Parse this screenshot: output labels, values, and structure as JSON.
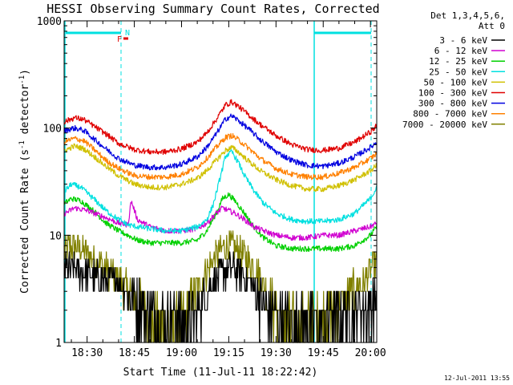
{
  "chart_data": {
    "type": "line",
    "title": "HESSI Observing Summary Count Rates, Corrected",
    "xlabel": "Start Time (11-Jul-11 18:22:42)",
    "ylabel_parts": [
      "Corrected Count Rate (s",
      "-1",
      " detector",
      "-1",
      ")"
    ],
    "yscale": "log",
    "ylim": [
      1,
      1000
    ],
    "xlim": [
      "18:22:42",
      "20:02:00"
    ],
    "x_ticks": [
      "18:30",
      "18:45",
      "19:00",
      "19:15",
      "19:30",
      "19:45",
      "20:00"
    ],
    "x_tick_minutes": [
      510,
      525,
      540,
      555,
      570,
      585,
      600
    ],
    "x_range_minutes": [
      502.7,
      602
    ],
    "y_ticks": [
      {
        "value": 1,
        "label": "1"
      },
      {
        "value": 10,
        "label": "10"
      },
      {
        "value": 100,
        "label": "100"
      },
      {
        "value": 1000,
        "label": "1000"
      }
    ],
    "legend_header": [
      "Det 1,3,4,5,6,",
      "Att 0"
    ],
    "legend_position": "right",
    "annotations": {
      "flag_F": "F",
      "flag_N": "N"
    },
    "series": [
      {
        "name": "3 - 6 keV",
        "color": "#000000",
        "noisy": true,
        "x": [
          503,
          508,
          515,
          520,
          523,
          525,
          530,
          535,
          540,
          544,
          547,
          550,
          553,
          556,
          559,
          562,
          565,
          570,
          575,
          580,
          585,
          590,
          595,
          600,
          602
        ],
        "y": [
          5,
          4.5,
          4,
          3.5,
          3,
          2.5,
          2,
          1.8,
          1.6,
          1.8,
          2.5,
          3.5,
          4.5,
          5,
          4.5,
          3.5,
          2.5,
          1.8,
          1.6,
          1.6,
          1.6,
          1.8,
          2,
          2.2,
          2.5
        ]
      },
      {
        "name": "6 - 12 keV",
        "color": "#d000d0",
        "x": [
          503,
          506,
          510,
          515,
          520,
          523,
          524,
          526,
          530,
          535,
          540,
          545,
          548,
          551,
          553,
          555,
          557,
          560,
          563,
          566,
          570,
          575,
          580,
          585,
          590,
          595,
          600,
          602
        ],
        "y": [
          16,
          18,
          17,
          15,
          13,
          12.5,
          21,
          14,
          12,
          11,
          11,
          11.5,
          13,
          16,
          18,
          17,
          16,
          14,
          12,
          11,
          10,
          9.5,
          9.5,
          10,
          10,
          11,
          12,
          13
        ]
      },
      {
        "name": "12 - 25 keV",
        "color": "#00d000",
        "x": [
          503,
          505,
          508,
          512,
          516,
          520,
          523,
          526,
          530,
          535,
          540,
          545,
          548,
          551,
          553,
          555,
          557,
          560,
          563,
          566,
          570,
          575,
          580,
          585,
          590,
          595,
          600,
          602
        ],
        "y": [
          20,
          22,
          21,
          17,
          13,
          11,
          10,
          9,
          8.5,
          8.5,
          8.5,
          9,
          11,
          16,
          22,
          24,
          21,
          16,
          12,
          9.5,
          8,
          7.5,
          7.5,
          7.5,
          7.5,
          8,
          10,
          12
        ]
      },
      {
        "name": "25 - 50 keV",
        "color": "#00e0e0",
        "x": [
          503,
          505,
          508,
          512,
          516,
          520,
          523,
          526,
          530,
          535,
          540,
          545,
          548,
          550,
          552,
          554,
          556,
          558,
          560,
          563,
          566,
          570,
          575,
          580,
          585,
          590,
          595,
          600,
          602
        ],
        "y": [
          26,
          30,
          28,
          22,
          17,
          14,
          12.5,
          12,
          11.5,
          11,
          11,
          12,
          14,
          19,
          32,
          55,
          60,
          48,
          36,
          26,
          20,
          16,
          14,
          13.5,
          13.5,
          14,
          16,
          22,
          28
        ]
      },
      {
        "name": "50 - 100 keV",
        "color": "#d0c000",
        "x": [
          503,
          506,
          509,
          512,
          516,
          520,
          525,
          530,
          535,
          540,
          545,
          548,
          551,
          554,
          556,
          558,
          561,
          565,
          570,
          575,
          580,
          585,
          590,
          595,
          600,
          602
        ],
        "y": [
          62,
          68,
          64,
          55,
          44,
          36,
          30,
          28,
          28,
          30,
          34,
          40,
          50,
          62,
          66,
          60,
          50,
          40,
          33,
          29,
          27,
          27,
          29,
          33,
          40,
          45
        ]
      },
      {
        "name": "100 - 300 keV",
        "color": "#e00000",
        "x": [
          503,
          506,
          509,
          512,
          516,
          520,
          525,
          530,
          535,
          540,
          545,
          548,
          551,
          554,
          556,
          558,
          561,
          565,
          570,
          575,
          580,
          585,
          590,
          595,
          600,
          602
        ],
        "y": [
          115,
          125,
          120,
          105,
          88,
          72,
          63,
          60,
          60,
          64,
          74,
          90,
          120,
          165,
          175,
          160,
          135,
          108,
          85,
          70,
          63,
          62,
          65,
          74,
          92,
          105
        ]
      },
      {
        "name": "300 - 800 keV",
        "color": "#0000e0",
        "x": [
          503,
          506,
          509,
          512,
          516,
          520,
          525,
          530,
          535,
          540,
          545,
          548,
          551,
          554,
          556,
          558,
          561,
          565,
          570,
          575,
          580,
          585,
          590,
          595,
          600,
          602
        ],
        "y": [
          95,
          100,
          95,
          80,
          64,
          52,
          45,
          43,
          43,
          46,
          54,
          66,
          88,
          122,
          130,
          118,
          100,
          78,
          60,
          50,
          45,
          44,
          47,
          54,
          66,
          74
        ]
      },
      {
        "name": "800 - 7000 keV",
        "color": "#ff8000",
        "x": [
          503,
          506,
          509,
          512,
          516,
          520,
          525,
          530,
          535,
          540,
          545,
          548,
          551,
          554,
          556,
          558,
          561,
          565,
          570,
          575,
          580,
          585,
          590,
          595,
          600,
          602
        ],
        "y": [
          75,
          80,
          76,
          64,
          50,
          42,
          36,
          35,
          35,
          37,
          43,
          52,
          66,
          82,
          85,
          78,
          66,
          52,
          42,
          37,
          35,
          35,
          38,
          43,
          52,
          58
        ]
      },
      {
        "name": "7000 - 20000 keV",
        "color": "#808000",
        "noisy": true,
        "x": [
          503,
          505,
          508,
          512,
          516,
          520,
          523,
          526,
          530,
          535,
          540,
          544,
          547,
          550,
          553,
          556,
          559,
          562,
          565,
          568,
          572,
          576,
          580,
          585,
          590,
          595,
          600,
          602
        ],
        "y": [
          7,
          8,
          7.5,
          6,
          5,
          4,
          3,
          2.5,
          1.6,
          1.4,
          1.6,
          2.5,
          4,
          6,
          7.5,
          8,
          7,
          5.5,
          4,
          2.5,
          1.6,
          1.5,
          1.6,
          1.8,
          2.2,
          3,
          4.5,
          5.5
        ]
      }
    ]
  },
  "footer": {
    "timestamp": "12-Jul-2011 13:55"
  }
}
